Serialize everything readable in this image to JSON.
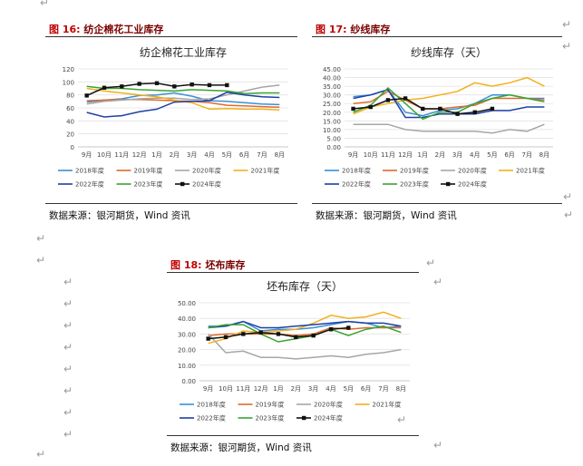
{
  "glyphs": {
    "return_mark": "↵"
  },
  "figures": [
    {
      "label": "图 16:",
      "name": "纺企棉花工业库存",
      "source": "数据来源：银河期货，Wind 资讯",
      "chart_data": {
        "type": "line",
        "title": "纺企棉花工业库存",
        "categories": [
          "9月",
          "10月",
          "11月",
          "12月",
          "1月",
          "2月",
          "3月",
          "4月",
          "5月",
          "6月",
          "7月",
          "8月"
        ],
        "ylim": [
          0,
          120
        ],
        "yticks": [
          0,
          20,
          40,
          60,
          80,
          100,
          120
        ],
        "ytick_decimals": 0,
        "grid": true,
        "legend_position": "bottom",
        "series": [
          {
            "name": "2018年度",
            "color": "#3a8fd6",
            "marker": false,
            "values": [
              69,
              72,
              74,
              79,
              80,
              83,
              78,
              71,
              70,
              68,
              66,
              65
            ]
          },
          {
            "name": "2019年度",
            "color": "#e06b2a",
            "marker": false,
            "values": [
              71,
              72,
              73,
              73,
              72,
              71,
              70,
              68,
              64,
              63,
              62,
              61
            ]
          },
          {
            "name": "2020年度",
            "color": "#a6a6a6",
            "marker": false,
            "values": [
              66,
              70,
              72,
              74,
              75,
              75,
              73,
              74,
              80,
              86,
              92,
              95
            ]
          },
          {
            "name": "2021年度",
            "color": "#f2b01e",
            "marker": false,
            "values": [
              90,
              86,
              83,
              80,
              77,
              72,
              68,
              58,
              59,
              58,
              58,
              57
            ]
          },
          {
            "name": "2022年度",
            "color": "#1f3fa6",
            "marker": false,
            "values": [
              53,
              46,
              48,
              54,
              58,
              69,
              70,
              71,
              84,
              80,
              77,
              76
            ]
          },
          {
            "name": "2023年度",
            "color": "#3aa232",
            "marker": false,
            "values": [
              93,
              90,
              90,
              88,
              87,
              86,
              88,
              87,
              86,
              82,
              83,
              83
            ]
          },
          {
            "name": "2024年度",
            "color": "#111111",
            "marker": true,
            "values": [
              79,
              91,
              93,
              97,
              98,
              93,
              96,
              95,
              95,
              null,
              null,
              null
            ]
          }
        ]
      }
    },
    {
      "label": "图 17:",
      "name": "纱线库存",
      "source": "数据来源：银河期货，Wind 资讯",
      "chart_data": {
        "type": "line",
        "title": "纱线库存（天）",
        "categories": [
          "9月",
          "10月",
          "11月",
          "12月",
          "1月",
          "2月",
          "3月",
          "4月",
          "5月",
          "6月",
          "7月",
          "8月"
        ],
        "ylim": [
          0,
          45
        ],
        "yticks": [
          0,
          5,
          10,
          15,
          20,
          25,
          30,
          35,
          40,
          45
        ],
        "ytick_decimals": 2,
        "grid": true,
        "legend_position": "bottom",
        "series": [
          {
            "name": "2018年度",
            "color": "#3a8fd6",
            "marker": false,
            "values": [
              29,
              30,
              33,
              20,
              18,
              21,
              22,
              25,
              30,
              30,
              28,
              28
            ]
          },
          {
            "name": "2019年度",
            "color": "#e06b2a",
            "marker": false,
            "values": [
              25,
              26,
              32,
              27,
              22,
              22,
              23,
              24,
              28,
              28,
              28,
              27
            ]
          },
          {
            "name": "2020年度",
            "color": "#a6a6a6",
            "marker": false,
            "values": [
              13,
              13,
              13,
              10,
              9,
              9,
              9,
              9,
              8,
              10,
              9,
              13
            ]
          },
          {
            "name": "2021年度",
            "color": "#f2b01e",
            "marker": false,
            "values": [
              19,
              23,
              25,
              27,
              28,
              30,
              32,
              37,
              35,
              37,
              40,
              35
            ]
          },
          {
            "name": "2022年度",
            "color": "#1f3fa6",
            "marker": false,
            "values": [
              28,
              30,
              33,
              17,
              17,
              19,
              19,
              19,
              21,
              21,
              23,
              23
            ]
          },
          {
            "name": "2023年度",
            "color": "#3aa232",
            "marker": false,
            "values": [
              20,
              24,
              34,
              25,
              16,
              20,
              20,
              25,
              28,
              30,
              28,
              26
            ]
          },
          {
            "name": "2024年度",
            "color": "#111111",
            "marker": true,
            "values": [
              22,
              23,
              27,
              28,
              22,
              22,
              19,
              20,
              22,
              null,
              null,
              null
            ]
          }
        ]
      }
    },
    {
      "label": "图 18:",
      "name": "坯布库存",
      "source": "数据来源：银河期货，Wind 资讯",
      "chart_data": {
        "type": "line",
        "title": "坯布库存（天）",
        "categories": [
          "9月",
          "10月",
          "11月",
          "12月",
          "1月",
          "2月",
          "3月",
          "4月",
          "5月",
          "6月",
          "7月",
          "8月"
        ],
        "ylim": [
          0,
          50
        ],
        "yticks": [
          0,
          10,
          20,
          30,
          40,
          50
        ],
        "ytick_decimals": 2,
        "grid": true,
        "legend_position": "bottom",
        "series": [
          {
            "name": "2018年度",
            "color": "#3a8fd6",
            "marker": false,
            "values": [
              35,
              35,
              38,
              32,
              33,
              33,
              34,
              36,
              38,
              37,
              34,
              35
            ]
          },
          {
            "name": "2019年度",
            "color": "#e06b2a",
            "marker": false,
            "values": [
              29,
              30,
              30,
              30,
              30,
              29,
              30,
              34,
              33,
              34,
              34,
              34
            ]
          },
          {
            "name": "2020年度",
            "color": "#a6a6a6",
            "marker": false,
            "values": [
              30,
              18,
              19,
              15,
              15,
              14,
              15,
              16,
              15,
              17,
              18,
              20
            ]
          },
          {
            "name": "2021年度",
            "color": "#f2b01e",
            "marker": false,
            "values": [
              24,
              27,
              32,
              31,
              32,
              33,
              37,
              42,
              40,
              41,
              44,
              40
            ]
          },
          {
            "name": "2022年度",
            "color": "#1f3fa6",
            "marker": false,
            "values": [
              34,
              35,
              38,
              34,
              34,
              35,
              36,
              37,
              38,
              37,
              37,
              35
            ]
          },
          {
            "name": "2023年度",
            "color": "#3aa232",
            "marker": false,
            "values": [
              34,
              36,
              36,
              30,
              25,
              27,
              29,
              33,
              29,
              33,
              35,
              31
            ]
          },
          {
            "name": "2024年度",
            "color": "#111111",
            "marker": true,
            "values": [
              27,
              28,
              30,
              31,
              30,
              28,
              29,
              33,
              34,
              null,
              null,
              null
            ]
          }
        ]
      }
    }
  ]
}
